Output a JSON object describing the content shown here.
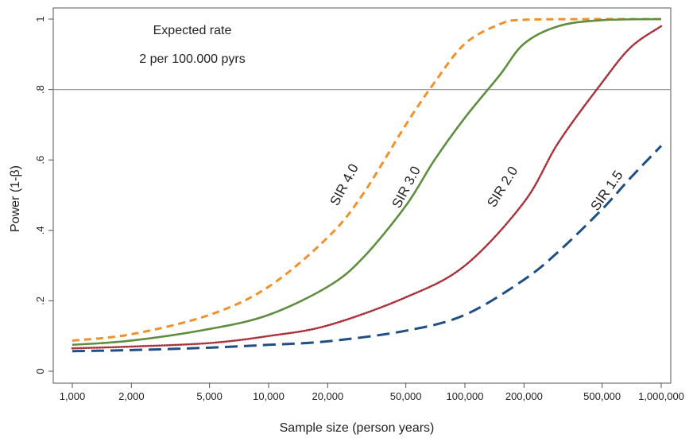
{
  "chart_data": {
    "type": "line",
    "xscale": "log",
    "xlim": [
      1000,
      1000000
    ],
    "ylim": [
      0,
      1
    ],
    "xlabel": "Sample size (person years)",
    "ylabel": "Power (1-β)",
    "x_ticks": [
      1000,
      2000,
      5000,
      10000,
      20000,
      50000,
      100000,
      200000,
      500000,
      1000000
    ],
    "x_tick_labels": [
      "1,000",
      "2,000",
      "5,000",
      "10,000",
      "20,000",
      "50,000",
      "100,000",
      "200,000",
      "500,000",
      "1,000,000"
    ],
    "y_ticks": [
      0,
      0.2,
      0.4,
      0.6,
      0.8,
      1
    ],
    "y_tick_labels": [
      "0",
      ".2",
      ".4",
      ".6",
      ".8",
      "1"
    ],
    "reference_line": {
      "y": 0.8,
      "color": "#999999"
    },
    "annotations": [
      "Expected rate",
      "2 per 100.000 pyrs"
    ],
    "grid": false,
    "legend": "none",
    "series": [
      {
        "name": "SIR 4.0",
        "color": "#F0922B",
        "style": "dashed",
        "x": [
          1000,
          2000,
          5000,
          10000,
          20000,
          30000,
          50000,
          70000,
          100000,
          150000,
          200000,
          500000,
          1000000
        ],
        "y": [
          0.087,
          0.105,
          0.16,
          0.24,
          0.38,
          0.5,
          0.7,
          0.82,
          0.93,
          0.985,
          0.998,
          1.0,
          1.0
        ]
      },
      {
        "name": "SIR 3.0",
        "color": "#5E8E3E",
        "style": "solid",
        "x": [
          1000,
          2000,
          5000,
          10000,
          20000,
          30000,
          50000,
          70000,
          100000,
          150000,
          200000,
          300000,
          500000,
          1000000
        ],
        "y": [
          0.075,
          0.087,
          0.12,
          0.16,
          0.24,
          0.32,
          0.47,
          0.6,
          0.72,
          0.84,
          0.93,
          0.98,
          0.997,
          1.0
        ]
      },
      {
        "name": "SIR 2.0",
        "color": "#A8323A",
        "style": "dotted",
        "x": [
          1000,
          2000,
          5000,
          10000,
          20000,
          50000,
          100000,
          200000,
          300000,
          500000,
          700000,
          1000000
        ],
        "y": [
          0.065,
          0.07,
          0.08,
          0.1,
          0.13,
          0.21,
          0.3,
          0.48,
          0.65,
          0.82,
          0.92,
          0.98
        ]
      },
      {
        "name": "SIR 1.5",
        "color": "#1F4E85",
        "style": "long-dashed",
        "x": [
          1000,
          2000,
          5000,
          10000,
          20000,
          50000,
          100000,
          200000,
          300000,
          500000,
          700000,
          1000000
        ],
        "y": [
          0.057,
          0.06,
          0.067,
          0.075,
          0.085,
          0.115,
          0.16,
          0.26,
          0.34,
          0.46,
          0.55,
          0.64
        ]
      }
    ]
  }
}
